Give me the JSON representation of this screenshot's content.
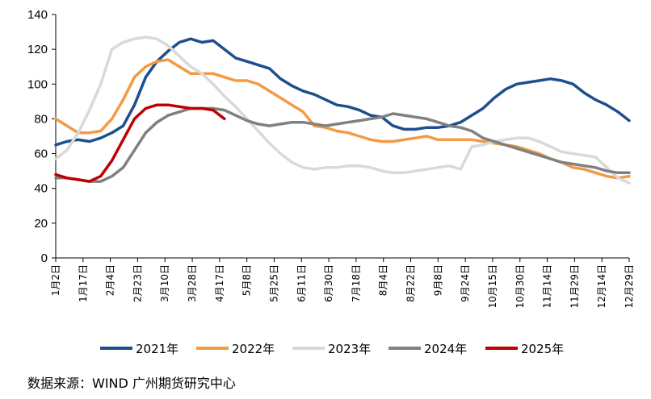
{
  "chart_data": {
    "type": "line",
    "title": "",
    "xlabel": "",
    "ylabel": "",
    "ylim": [
      0,
      140
    ],
    "yticks": [
      0,
      20,
      40,
      60,
      80,
      100,
      120,
      140
    ],
    "weeks": 52,
    "x_tick_labels": [
      "1月2日",
      "1月17日",
      "2月4日",
      "2月23日",
      "3月10日",
      "3月28日",
      "4月17日",
      "5月8日",
      "5月25日",
      "6月11日",
      "6月30日",
      "7月18日",
      "8月4日",
      "8月22日",
      "9月8日",
      "9月24日",
      "10月15日",
      "10月30日",
      "11月14日",
      "11月29日",
      "12月14日",
      "12月29日"
    ],
    "grid": false,
    "legend_position": "bottom",
    "series": [
      {
        "name": "2021年",
        "color": "#1F4E8C",
        "values": [
          65,
          67,
          68,
          67,
          69,
          72,
          76,
          88,
          104,
          113,
          119,
          124,
          126,
          124,
          125,
          120,
          115,
          113,
          111,
          109,
          103,
          99,
          96,
          94,
          91,
          88,
          87,
          85,
          82,
          81,
          76,
          74,
          74,
          75,
          75,
          76,
          78,
          82,
          86,
          92,
          97,
          100,
          101,
          102,
          103,
          102,
          100,
          95,
          91,
          88,
          84,
          79
        ]
      },
      {
        "name": "2022年",
        "color": "#F39A45",
        "values": [
          80,
          76,
          72,
          72,
          73,
          80,
          91,
          104,
          110,
          113,
          114,
          110,
          106,
          106,
          106,
          104,
          102,
          102,
          100,
          96,
          92,
          88,
          84,
          76,
          75,
          73,
          72,
          70,
          68,
          67,
          67,
          68,
          69,
          70,
          68,
          68,
          68,
          68,
          67,
          66,
          65,
          64,
          62,
          60,
          57,
          55,
          52,
          51,
          49,
          47,
          46,
          47
        ]
      },
      {
        "name": "2023年",
        "color": "#D9D9D9",
        "values": [
          57,
          62,
          72,
          85,
          100,
          120,
          124,
          126,
          127,
          126,
          122,
          116,
          110,
          106,
          100,
          93,
          87,
          80,
          73,
          66,
          60,
          55,
          52,
          51,
          52,
          52,
          53,
          53,
          52,
          50,
          49,
          49,
          50,
          51,
          52,
          53,
          51,
          64,
          65,
          67,
          68,
          69,
          69,
          67,
          64,
          61,
          60,
          59,
          58,
          52,
          46,
          43
        ]
      },
      {
        "name": "2024年",
        "color": "#808080",
        "values": [
          46,
          46,
          45,
          44,
          44,
          47,
          52,
          62,
          72,
          78,
          82,
          84,
          86,
          86,
          86,
          85,
          82,
          79,
          77,
          76,
          77,
          78,
          78,
          77,
          76,
          77,
          78,
          79,
          80,
          81,
          83,
          82,
          81,
          80,
          78,
          76,
          75,
          73,
          69,
          67,
          65,
          63,
          61,
          59,
          57,
          55,
          54,
          53,
          52,
          50,
          49,
          49
        ]
      },
      {
        "name": "2025年",
        "color": "#C00000",
        "values": [
          48,
          46,
          45,
          44,
          47,
          56,
          68,
          80,
          86,
          88,
          88,
          87,
          86,
          86,
          85,
          80
        ]
      }
    ]
  },
  "source": "数据来源：WIND  广州期货研究中心"
}
